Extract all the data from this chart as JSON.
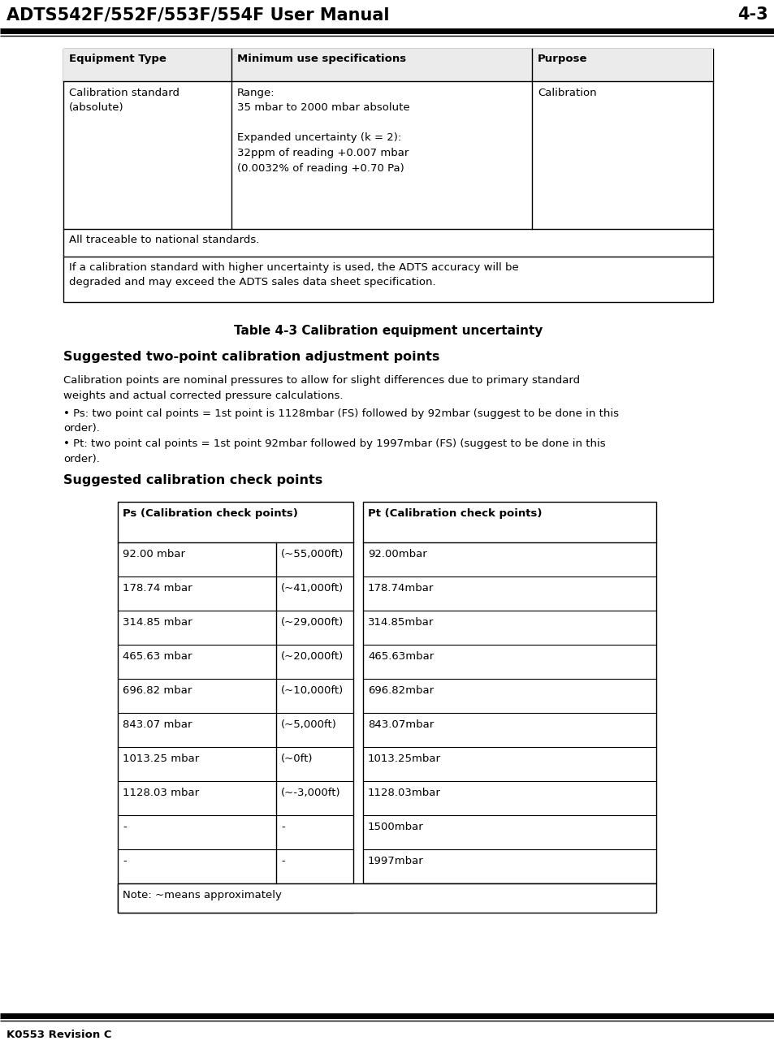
{
  "header_title": "ADTS542F/552F/553F/554F User Manual",
  "header_page": "4-3",
  "footer_text": "K0553 Revision C",
  "table1_title": "Table 4-3 Calibration equipment uncertainty",
  "section1_title": "Suggested two-point calibration adjustment points",
  "section1_body": "Calibration points are nominal pressures to allow for slight differences due to primary standard\nweights and actual corrected pressure calculations.",
  "bullet1": "• Ps: two point cal points = 1st point is 1128mbar (FS) followed by 92mbar (suggest to be done in this\norder).",
  "bullet2": "• Pt: two point cal points = 1st point 92mbar followed by 1997mbar (FS) (suggest to be done in this\norder).",
  "section2_title": "Suggested calibration check points",
  "t1_headers": [
    "Equipment Type",
    "Minimum use specifications",
    "Purpose"
  ],
  "t1_c1": "Calibration standard\n(absolute)",
  "t1_c2": "Range:\n35 mbar to 2000 mbar absolute\n\nExpanded uncertainty (k = 2):\n32ppm of reading +0.007 mbar\n(0.0032% of reading +0.70 Pa)",
  "t1_c3": "Calibration",
  "t1_row2": "All traceable to national standards.",
  "t1_row3": "If a calibration standard with higher uncertainty is used, the ADTS accuracy will be\ndegraded and may exceed the ADTS sales data sheet specification.",
  "t2_ps_header": "Ps (Calibration check points)",
  "t2_pt_header": "Pt (Calibration check points)",
  "t2_rows": [
    [
      "92.00 mbar",
      "(~55,000ft)",
      "92.00mbar"
    ],
    [
      "178.74 mbar",
      "(~41,000ft)",
      "178.74mbar"
    ],
    [
      "314.85 mbar",
      "(~29,000ft)",
      "314.85mbar"
    ],
    [
      "465.63 mbar",
      "(~20,000ft)",
      "465.63mbar"
    ],
    [
      "696.82 mbar",
      "(~10,000ft)",
      "696.82mbar"
    ],
    [
      "843.07 mbar",
      "(~5,000ft)",
      "843.07mbar"
    ],
    [
      "1013.25 mbar",
      "(~0ft)",
      "1013.25mbar"
    ],
    [
      "1128.03 mbar",
      "(~-3,000ft)",
      "1128.03mbar"
    ],
    [
      "-",
      "-",
      "1500mbar"
    ],
    [
      "-",
      "-",
      "1997mbar"
    ]
  ],
  "t2_note": "Note: ~means approximately",
  "bg": "#ffffff",
  "fg": "#000000",
  "hdr_fs": 15,
  "body_fs": 9.5,
  "sec_fs": 11.5,
  "cap_fs": 11
}
